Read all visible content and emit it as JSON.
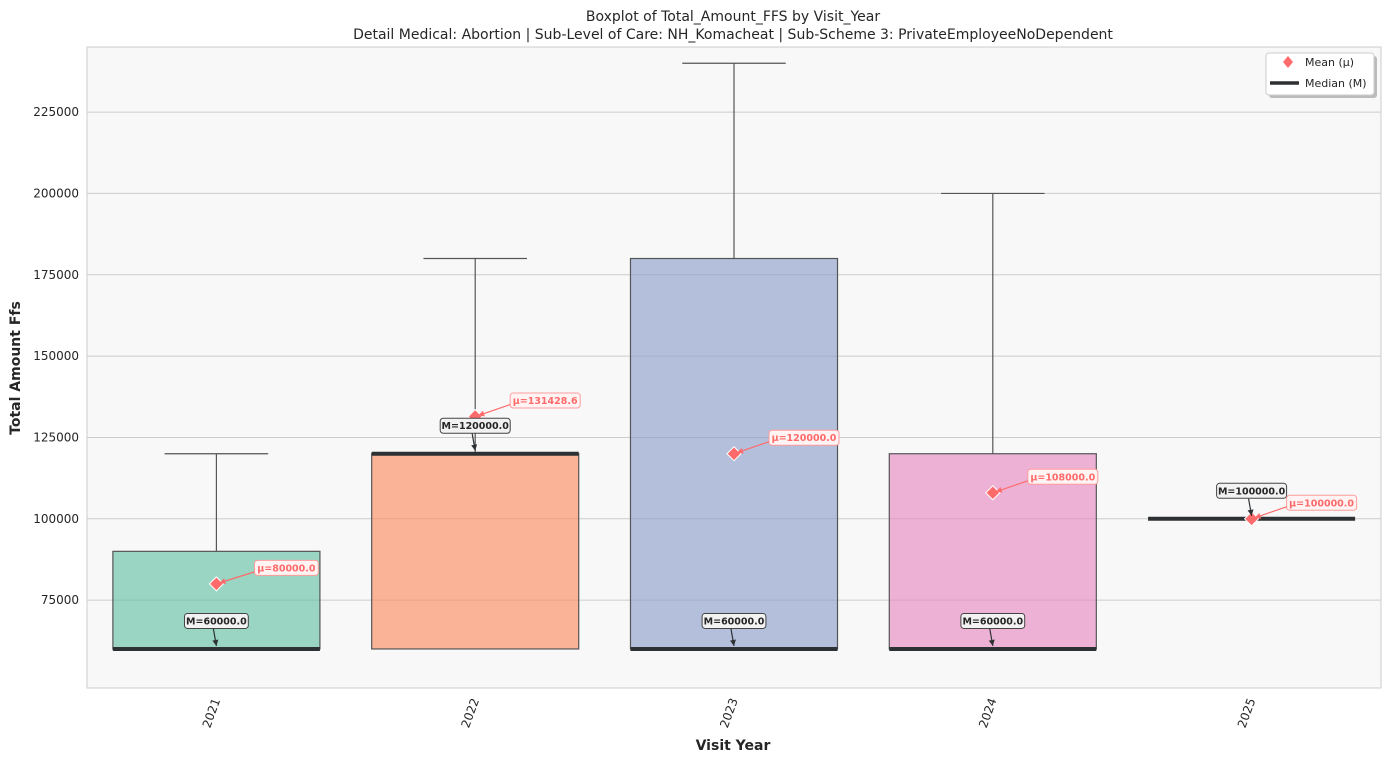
{
  "chart_data": {
    "type": "box",
    "title": "Boxplot of Total_Amount_FFS by Visit_Year",
    "subtitle": "Detail Medical: Abortion | Sub-Level of Care: NH_Komacheat | Sub-Scheme 3: PrivateEmployeeNoDependent",
    "xlabel": "Visit Year",
    "ylabel": "Total Amount Ffs",
    "ylim": [
      48000,
      245000
    ],
    "yticks": [
      75000,
      100000,
      125000,
      150000,
      175000,
      200000,
      225000
    ],
    "grid": "horizontal",
    "legend_position": "top-right",
    "legend": [
      {
        "label": "Mean (μ)",
        "marker": "diamond",
        "color": "#ff6b6b"
      },
      {
        "label": "Median (M)",
        "marker": "line",
        "color": "#2d3133"
      }
    ],
    "categories": [
      "2021",
      "2022",
      "2023",
      "2024",
      "2025"
    ],
    "boxes": [
      {
        "category": "2021",
        "whisker_low": 60000,
        "q1": 60000,
        "median": 60000,
        "q3": 90000,
        "whisker_high": 120000,
        "mean": 80000,
        "color": "#66c2a5",
        "median_label": "M=60000.0",
        "mean_label": "μ=80000.0"
      },
      {
        "category": "2022",
        "whisker_low": 60000,
        "q1": 60000,
        "median": 120000,
        "q3": 120000,
        "whisker_high": 180000,
        "mean": 131428.6,
        "color": "#fc8d62",
        "median_label": "M=120000.0",
        "mean_label": "μ=131428.6"
      },
      {
        "category": "2023",
        "whisker_low": 60000,
        "q1": 60000,
        "median": 60000,
        "q3": 180000,
        "whisker_high": 240000,
        "mean": 120000,
        "color": "#8da0cb",
        "median_label": "M=60000.0",
        "mean_label": "μ=120000.0"
      },
      {
        "category": "2024",
        "whisker_low": 60000,
        "q1": 60000,
        "median": 60000,
        "q3": 120000,
        "whisker_high": 200000,
        "mean": 108000,
        "color": "#e78ac3",
        "median_label": "M=60000.0",
        "mean_label": "μ=108000.0"
      },
      {
        "category": "2025",
        "whisker_low": 100000,
        "q1": 100000,
        "median": 100000,
        "q3": 100000,
        "whisker_high": 100000,
        "mean": 100000,
        "color": "#a6d854",
        "median_label": "M=100000.0",
        "mean_label": "μ=100000.0"
      }
    ]
  }
}
